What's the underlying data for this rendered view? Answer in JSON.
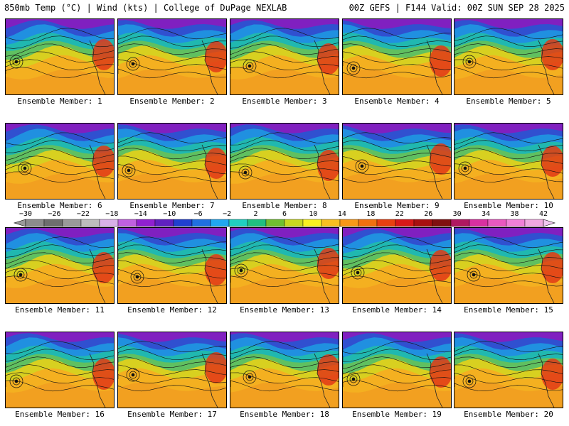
{
  "header": {
    "title_left": "850mb Temp (°C) | Wind (kts) | College of DuPage NEXLAB",
    "title_right": "00Z GEFS | F144 Valid: 00Z SUN SEP 28 2025"
  },
  "panels": [
    {
      "label": "Ensemble Member: 1"
    },
    {
      "label": "Ensemble Member: 2"
    },
    {
      "label": "Ensemble Member: 3"
    },
    {
      "label": "Ensemble Member: 4"
    },
    {
      "label": "Ensemble Member: 5"
    },
    {
      "label": "Ensemble Member: 6"
    },
    {
      "label": "Ensemble Member: 7"
    },
    {
      "label": "Ensemble Member: 8"
    },
    {
      "label": "Ensemble Member: 9"
    },
    {
      "label": "Ensemble Member: 10"
    },
    {
      "label": "Ensemble Member: 11"
    },
    {
      "label": "Ensemble Member: 12"
    },
    {
      "label": "Ensemble Member: 13"
    },
    {
      "label": "Ensemble Member: 14"
    },
    {
      "label": "Ensemble Member: 15"
    },
    {
      "label": "Ensemble Member: 16"
    },
    {
      "label": "Ensemble Member: 17"
    },
    {
      "label": "Ensemble Member: 18"
    },
    {
      "label": "Ensemble Member: 19"
    },
    {
      "label": "Ensemble Member: 20"
    }
  ],
  "colorbar": {
    "labels": [
      "−30",
      "−26",
      "−22",
      "−18",
      "−14",
      "−10",
      "−6",
      "−2",
      "2",
      "6",
      "10",
      "14",
      "18",
      "22",
      "26",
      "30",
      "34",
      "38",
      "42"
    ],
    "colors": [
      "#8c8c8c",
      "#6e6e6e",
      "#9a9a9a",
      "#bdbdbd",
      "#d8b0e8",
      "#c060e0",
      "#9020d0",
      "#6020c0",
      "#2040d0",
      "#2070e0",
      "#20a8f0",
      "#20d0c0",
      "#20c080",
      "#70c030",
      "#c8d820",
      "#f8f020",
      "#f8c020",
      "#f89818",
      "#f07010",
      "#e84010",
      "#d81818",
      "#a81010",
      "#801010",
      "#b01860",
      "#d830a0",
      "#e858c0",
      "#f080d8",
      "#f0a8e0"
    ]
  }
}
